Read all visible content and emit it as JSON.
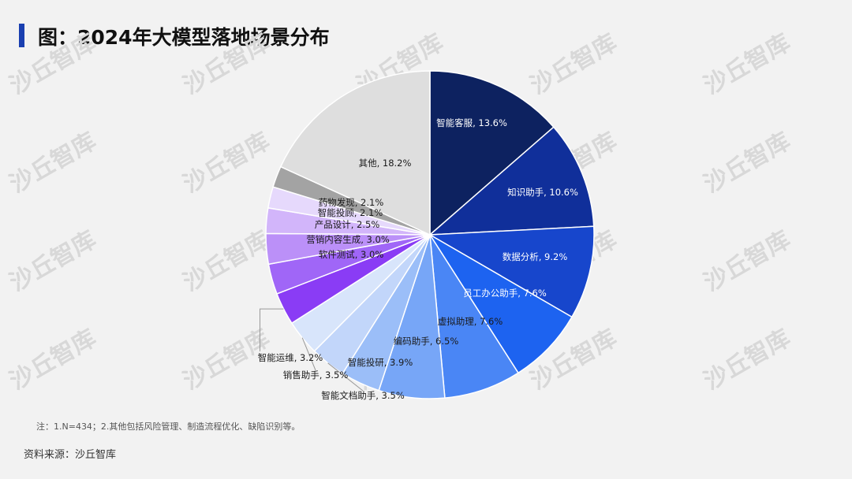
{
  "header": {
    "title": "图：2024年大模型落地场景分布"
  },
  "footer": {
    "note": "注：1.N=434；2.其他包括风险管理、制造流程优化、缺陷识别等。",
    "source": "资料来源：沙丘智库"
  },
  "watermark": {
    "text": "沙丘智库"
  },
  "chart_data": {
    "type": "pie",
    "title": "2024年大模型落地场景分布",
    "unit": "%",
    "slices": [
      {
        "label": "智能客服",
        "value": 13.6,
        "display": "智能客服, 13.6%",
        "color": "#0d2260",
        "label_color": "#ffffff"
      },
      {
        "label": "知识助手",
        "value": 10.6,
        "display": "知识助手, 10.6%",
        "color": "#102f9a",
        "label_color": "#ffffff"
      },
      {
        "label": "数据分析",
        "value": 9.2,
        "display": "数据分析, 9.2%",
        "color": "#1746cc",
        "label_color": "#ffffff"
      },
      {
        "label": "员工办公助手",
        "value": 7.6,
        "display": "员工办公助手, 7.6%",
        "color": "#1d63f0",
        "label_color": "#ffffff"
      },
      {
        "label": "虚拟助理",
        "value": 7.6,
        "display": "虚拟助理, 7.6%",
        "color": "#4a86f5",
        "label_color": "#1a1a1a"
      },
      {
        "label": "编码助手",
        "value": 6.5,
        "display": "编码助手, 6.5%",
        "color": "#77a6f7",
        "label_color": "#1a1a1a"
      },
      {
        "label": "智能投研",
        "value": 3.9,
        "display": "智能投研, 3.9%",
        "color": "#9bbef8",
        "label_color": "#1a1a1a"
      },
      {
        "label": "智能文档助手",
        "value": 3.5,
        "display": "智能文档助手, 3.5%",
        "color": "#c2d6fa",
        "label_color": "#1a1a1a"
      },
      {
        "label": "销售助手",
        "value": 3.5,
        "display": "销售助手, 3.5%",
        "color": "#d8e5fb",
        "label_color": "#1a1a1a"
      },
      {
        "label": "智能运维",
        "value": 3.2,
        "display": "智能运维, 3.2%",
        "color": "#8a3cf5",
        "label_color": "#1a1a1a"
      },
      {
        "label": "软件测试",
        "value": 3.0,
        "display": "软件测试, 3.0%",
        "color": "#a066f7",
        "label_color": "#1a1a1a"
      },
      {
        "label": "营销内容生成",
        "value": 3.0,
        "display": "营销内容生成, 3.0%",
        "color": "#bb90f8",
        "label_color": "#1a1a1a"
      },
      {
        "label": "产品设计",
        "value": 2.5,
        "display": "产品设计, 2.5%",
        "color": "#d2b5fa",
        "label_color": "#1a1a1a"
      },
      {
        "label": "智能投顾",
        "value": 2.1,
        "display": "智能投顾, 2.1%",
        "color": "#e6d9fc",
        "label_color": "#1a1a1a"
      },
      {
        "label": "药物发现",
        "value": 2.1,
        "display": "药物发现, 2.1%",
        "color": "#a3a3a3",
        "label_color": "#1a1a1a"
      },
      {
        "label": "其他",
        "value": 18.2,
        "display": "其他, 18.2%",
        "color": "#dedede",
        "label_color": "#1a1a1a"
      }
    ]
  }
}
